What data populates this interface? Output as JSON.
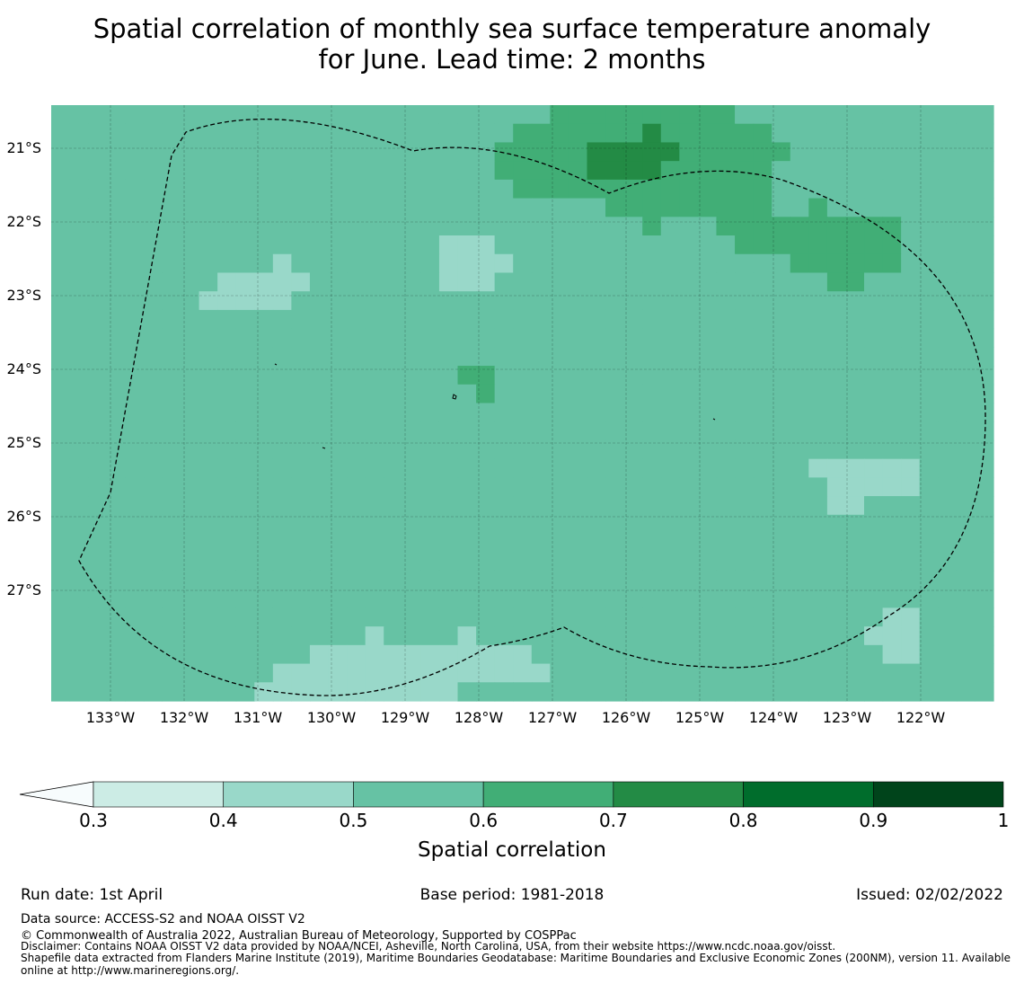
{
  "title": {
    "line1": "Spatial correlation of monthly sea surface temperature anomaly",
    "line2": "for June. Lead time: 2 months"
  },
  "map": {
    "lat_labels": [
      "21°S",
      "22°S",
      "23°S",
      "24°S",
      "25°S",
      "26°S",
      "27°S"
    ],
    "lon_labels": [
      "133°W",
      "132°W",
      "131°W",
      "130°W",
      "129°W",
      "128°W",
      "127°W",
      "126°W",
      "125°W",
      "124°W",
      "123°W",
      "122°W"
    ],
    "grid": "on",
    "boundary_line": "dashed",
    "extent": {
      "lon_min": -133.8,
      "lon_max": -121.0,
      "lat_min": -28.5,
      "lat_max": -20.4
    }
  },
  "colorbar": {
    "ticks": [
      "0.3",
      "0.4",
      "0.5",
      "0.6",
      "0.7",
      "0.8",
      "0.9",
      "1"
    ],
    "colors": [
      "#ccece5",
      "#99d8c9",
      "#66c2a4",
      "#41ae76",
      "#238b45",
      "#006d2c",
      "#00441b"
    ],
    "under_color": "#f7fcfd",
    "label": "Spatial correlation"
  },
  "footer": {
    "run_date": "Run date: 1st April",
    "base_period": "Base period: 1981-2018",
    "issued": "Issued: 02/02/2022",
    "data_source": "Data source: ACCESS-S2 and NOAA OISST V2",
    "copyright": "© Commonwealth of Australia 2022, Australian Bureau of Meteorology, Supported by COSPPac",
    "disclaimer": "Disclaimer: Contains NOAA OISST V2 data provided by NOAA/NCEI, Asheville, North Carolina, USA, from their website https://www.ncdc.noaa.gov/oisst.",
    "shapefile": "Shapefile data extracted from Flanders Marine Institute (2019), Maritime Boundaries Geodatabase: Maritime Boundaries and Exclusive Economic Zones (200NM), version 11. Available online at http://www.marineregions.org/."
  }
}
